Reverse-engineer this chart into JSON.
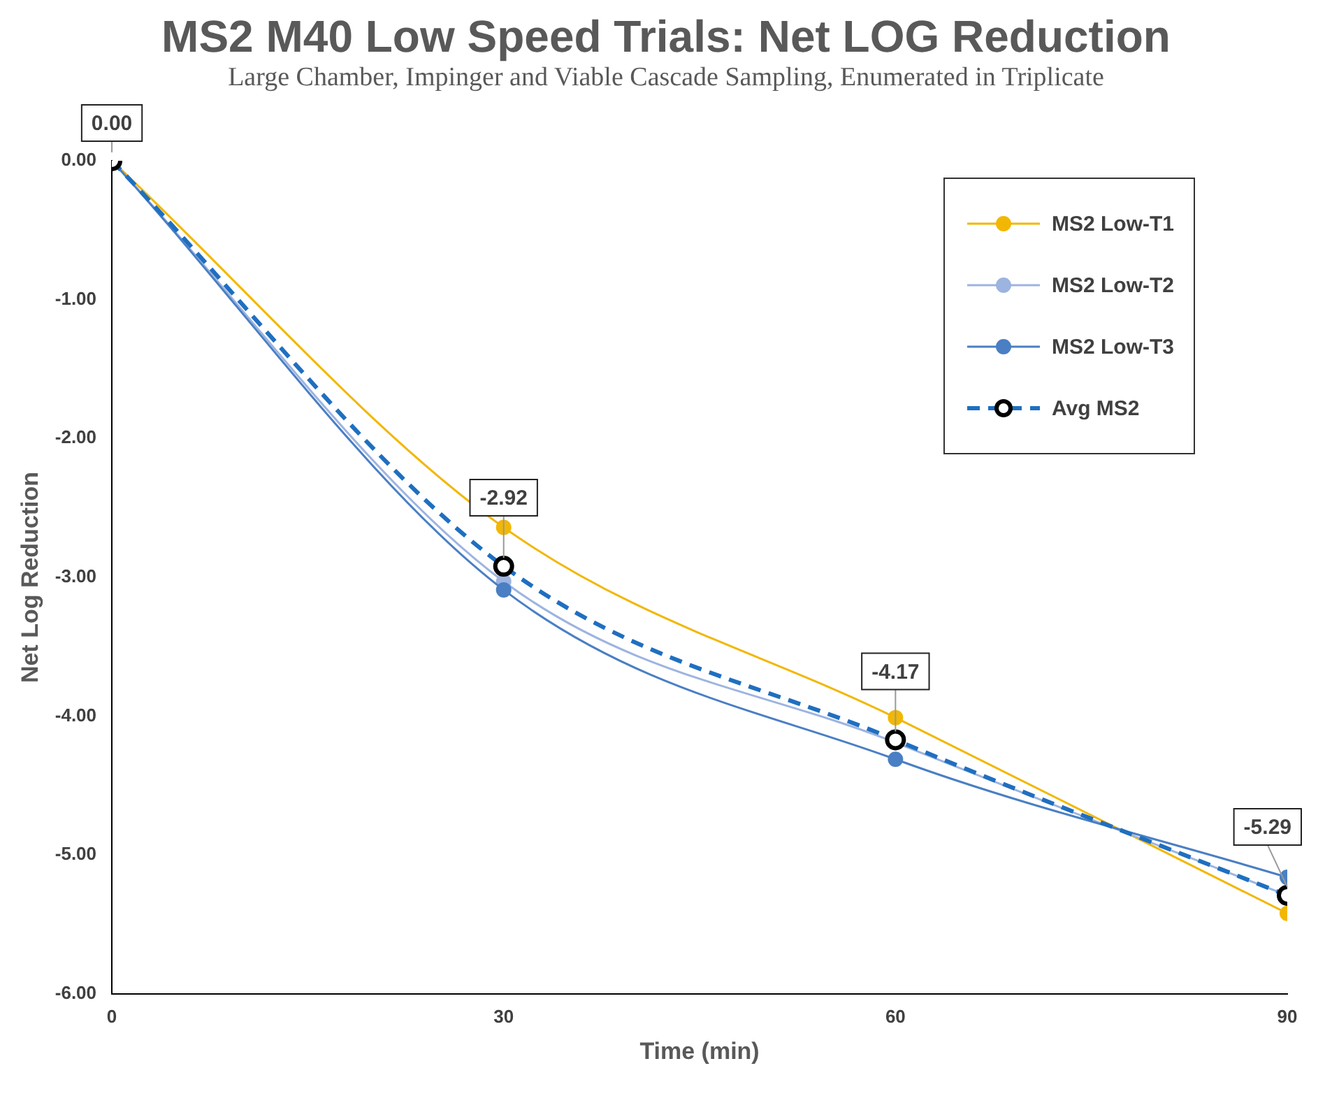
{
  "chart_data": {
    "type": "line",
    "title": "MS2 M40 Low Speed Trials: Net LOG Reduction",
    "subtitle": "Large Chamber, Impinger and Viable Cascade Sampling, Enumerated in Triplicate",
    "xlabel": "Time (min)",
    "ylabel": "Net Log Reduction",
    "x": [
      0,
      30,
      60,
      90
    ],
    "series": [
      {
        "name": "MS2 Low-T1",
        "color": "#f2b705",
        "values": [
          0,
          -2.64,
          -4.01,
          -5.42
        ]
      },
      {
        "name": "MS2 Low-T2",
        "color": "#9db4e0",
        "values": [
          0,
          -3.03,
          -4.19,
          -5.29
        ]
      },
      {
        "name": "MS2 Low-T3",
        "color": "#4a7fc4",
        "values": [
          0,
          -3.09,
          -4.31,
          -5.16
        ]
      },
      {
        "name": "Avg MS2",
        "color": "#1f6fc0",
        "line_style": "dashed",
        "values": [
          0,
          -2.92,
          -4.17,
          -5.29
        ],
        "value_labels": [
          "0.00",
          "-2.92",
          "-4.17",
          "-5.29"
        ]
      }
    ],
    "xlim": [
      0,
      90
    ],
    "xticks": [
      0,
      30,
      60,
      90
    ],
    "ylim": [
      -6,
      0
    ],
    "yticks": [
      {
        "value": 0,
        "label": "0.00"
      },
      {
        "value": -1,
        "label": "-1.00"
      },
      {
        "value": -2,
        "label": "-2.00"
      },
      {
        "value": -3,
        "label": "-3.00"
      },
      {
        "value": -4,
        "label": "-4.00"
      },
      {
        "value": -5,
        "label": "-5.00"
      },
      {
        "value": -6,
        "label": "-6.00"
      }
    ],
    "grid": false,
    "legend": "top right",
    "marker": "circle"
  }
}
